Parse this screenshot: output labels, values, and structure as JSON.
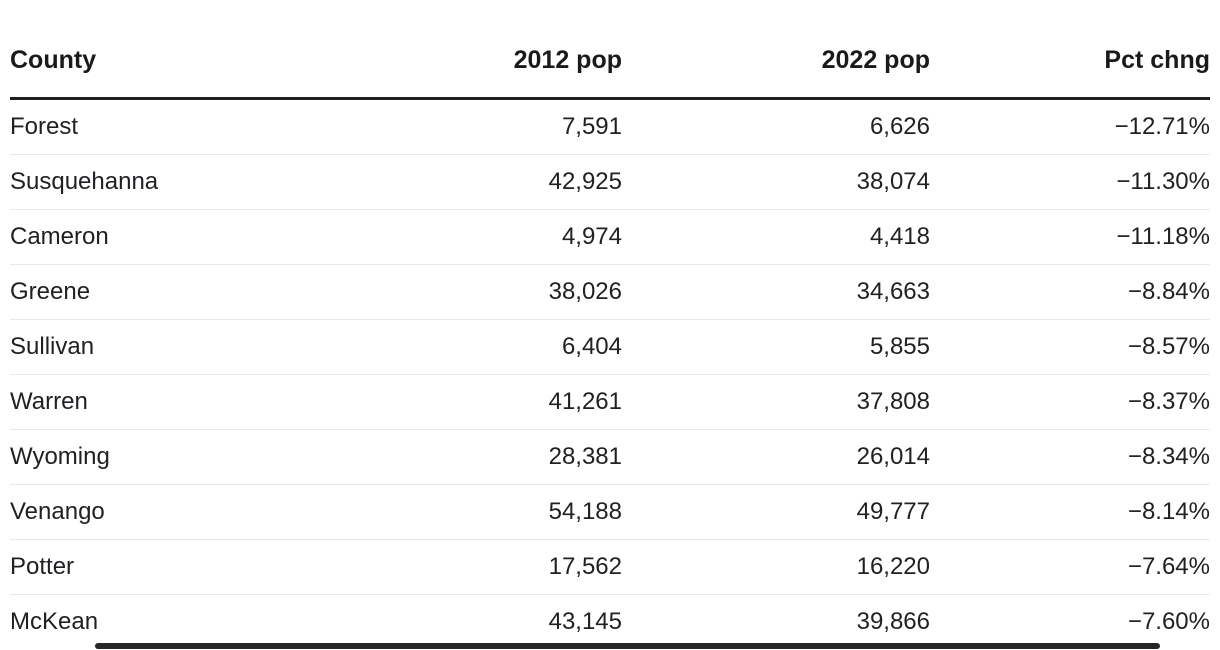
{
  "table": {
    "columns": [
      {
        "label": "County",
        "align": "left"
      },
      {
        "label": "2012 pop",
        "align": "right"
      },
      {
        "label": "2022 pop",
        "align": "right"
      },
      {
        "label": "Pct chng",
        "align": "right"
      }
    ],
    "rows": [
      [
        "Forest",
        "7,591",
        "6,626",
        "−12.71%"
      ],
      [
        "Susquehanna",
        "42,925",
        "38,074",
        "−11.30%"
      ],
      [
        "Cameron",
        "4,974",
        "4,418",
        "−11.18%"
      ],
      [
        "Greene",
        "38,026",
        "34,663",
        "−8.84%"
      ],
      [
        "Sullivan",
        "6,404",
        "5,855",
        "−8.57%"
      ],
      [
        "Warren",
        "41,261",
        "37,808",
        "−8.37%"
      ],
      [
        "Wyoming",
        "28,381",
        "26,014",
        "−8.34%"
      ],
      [
        "Venango",
        "54,188",
        "49,777",
        "−8.14%"
      ],
      [
        "Potter",
        "17,562",
        "16,220",
        "−7.64%"
      ],
      [
        "McKean",
        "43,145",
        "39,866",
        "−7.60%"
      ]
    ]
  },
  "chart_data": {
    "type": "table",
    "columns": [
      "County",
      "2012 pop",
      "2022 pop",
      "Pct chng"
    ],
    "rows": [
      {
        "county": "Forest",
        "pop_2012": 7591,
        "pop_2022": 6626,
        "pct_chng": -12.71
      },
      {
        "county": "Susquehanna",
        "pop_2012": 42925,
        "pop_2022": 38074,
        "pct_chng": -11.3
      },
      {
        "county": "Cameron",
        "pop_2012": 4974,
        "pop_2022": 4418,
        "pct_chng": -11.18
      },
      {
        "county": "Greene",
        "pop_2012": 38026,
        "pop_2022": 34663,
        "pct_chng": -8.84
      },
      {
        "county": "Sullivan",
        "pop_2012": 6404,
        "pop_2022": 5855,
        "pct_chng": -8.57
      },
      {
        "county": "Warren",
        "pop_2012": 41261,
        "pop_2022": 37808,
        "pct_chng": -8.37
      },
      {
        "county": "Wyoming",
        "pop_2012": 28381,
        "pop_2022": 26014,
        "pct_chng": -8.34
      },
      {
        "county": "Venango",
        "pop_2012": 54188,
        "pop_2022": 49777,
        "pct_chng": -8.14
      },
      {
        "county": "Potter",
        "pop_2012": 17562,
        "pop_2022": 16220,
        "pct_chng": -7.64
      },
      {
        "county": "McKean",
        "pop_2012": 43145,
        "pop_2022": 39866,
        "pct_chng": -7.6
      }
    ]
  },
  "colors": {
    "text": "#202124",
    "header_text": "#1a1a1a",
    "header_rule": "#1f1f1f",
    "row_divider": "#e7e7e7",
    "background": "#ffffff",
    "scrollbar_thumb": "#262626"
  }
}
